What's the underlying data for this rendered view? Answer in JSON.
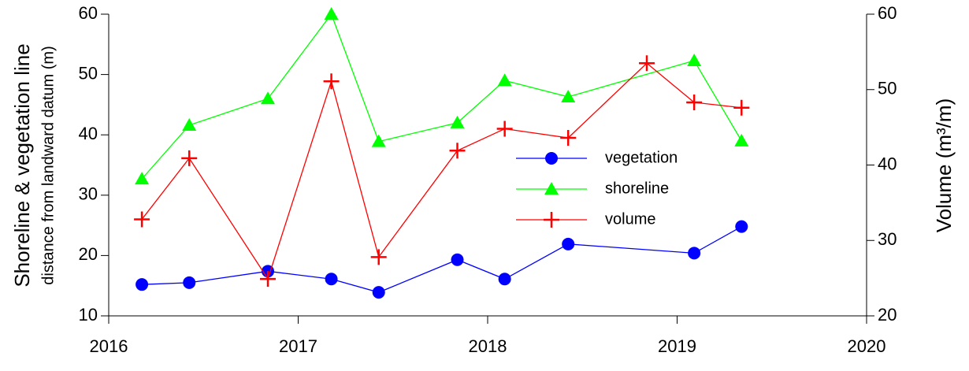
{
  "chart_data": {
    "type": "line",
    "ylabel": [
      "Shoreline & vegetation line",
      "distance from landward datum (m)"
    ],
    "y2label": "Volume (m³/m)",
    "xlim": [
      2016,
      2020
    ],
    "xticks": [
      2016,
      2017,
      2018,
      2019,
      2020
    ],
    "ylim": [
      10,
      60
    ],
    "yticks": [
      10,
      20,
      30,
      40,
      50,
      60
    ],
    "y2lim": [
      20,
      60
    ],
    "y2ticks": [
      20,
      30,
      40,
      50,
      60
    ],
    "legend": "center",
    "series": [
      {
        "name": "vegetation",
        "color": "#0000ff",
        "marker": "circle",
        "x": [
          2016.175,
          2016.425,
          2016.84,
          2017.175,
          2017.425,
          2017.84,
          2018.09,
          2018.425,
          2019.09,
          2019.34
        ],
        "values": [
          15.2,
          15.5,
          17.4,
          16.1,
          13.9,
          19.3,
          16.1,
          21.9,
          20.4,
          24.8
        ]
      },
      {
        "name": "shoreline",
        "color": "#00ff00",
        "marker": "triangle",
        "x": [
          2016.175,
          2016.425,
          2016.84,
          2017.175,
          2017.425,
          2017.84,
          2018.09,
          2018.425,
          2019.09,
          2019.34
        ],
        "values": [
          32.7,
          41.6,
          46.0,
          60.0,
          38.9,
          42.0,
          49.0,
          46.3,
          52.3,
          39.0
        ]
      },
      {
        "name": "volume",
        "color": "#ff0000",
        "marker": "plus",
        "axis": "y2",
        "x": [
          2016.175,
          2016.425,
          2016.84,
          2017.175,
          2017.425,
          2017.84,
          2018.09,
          2018.425,
          2018.84,
          2019.09,
          2019.34
        ],
        "values": [
          32.8,
          40.9,
          24.9,
          51.1,
          27.8,
          41.9,
          44.8,
          43.6,
          53.5,
          48.3,
          47.6
        ]
      }
    ]
  }
}
